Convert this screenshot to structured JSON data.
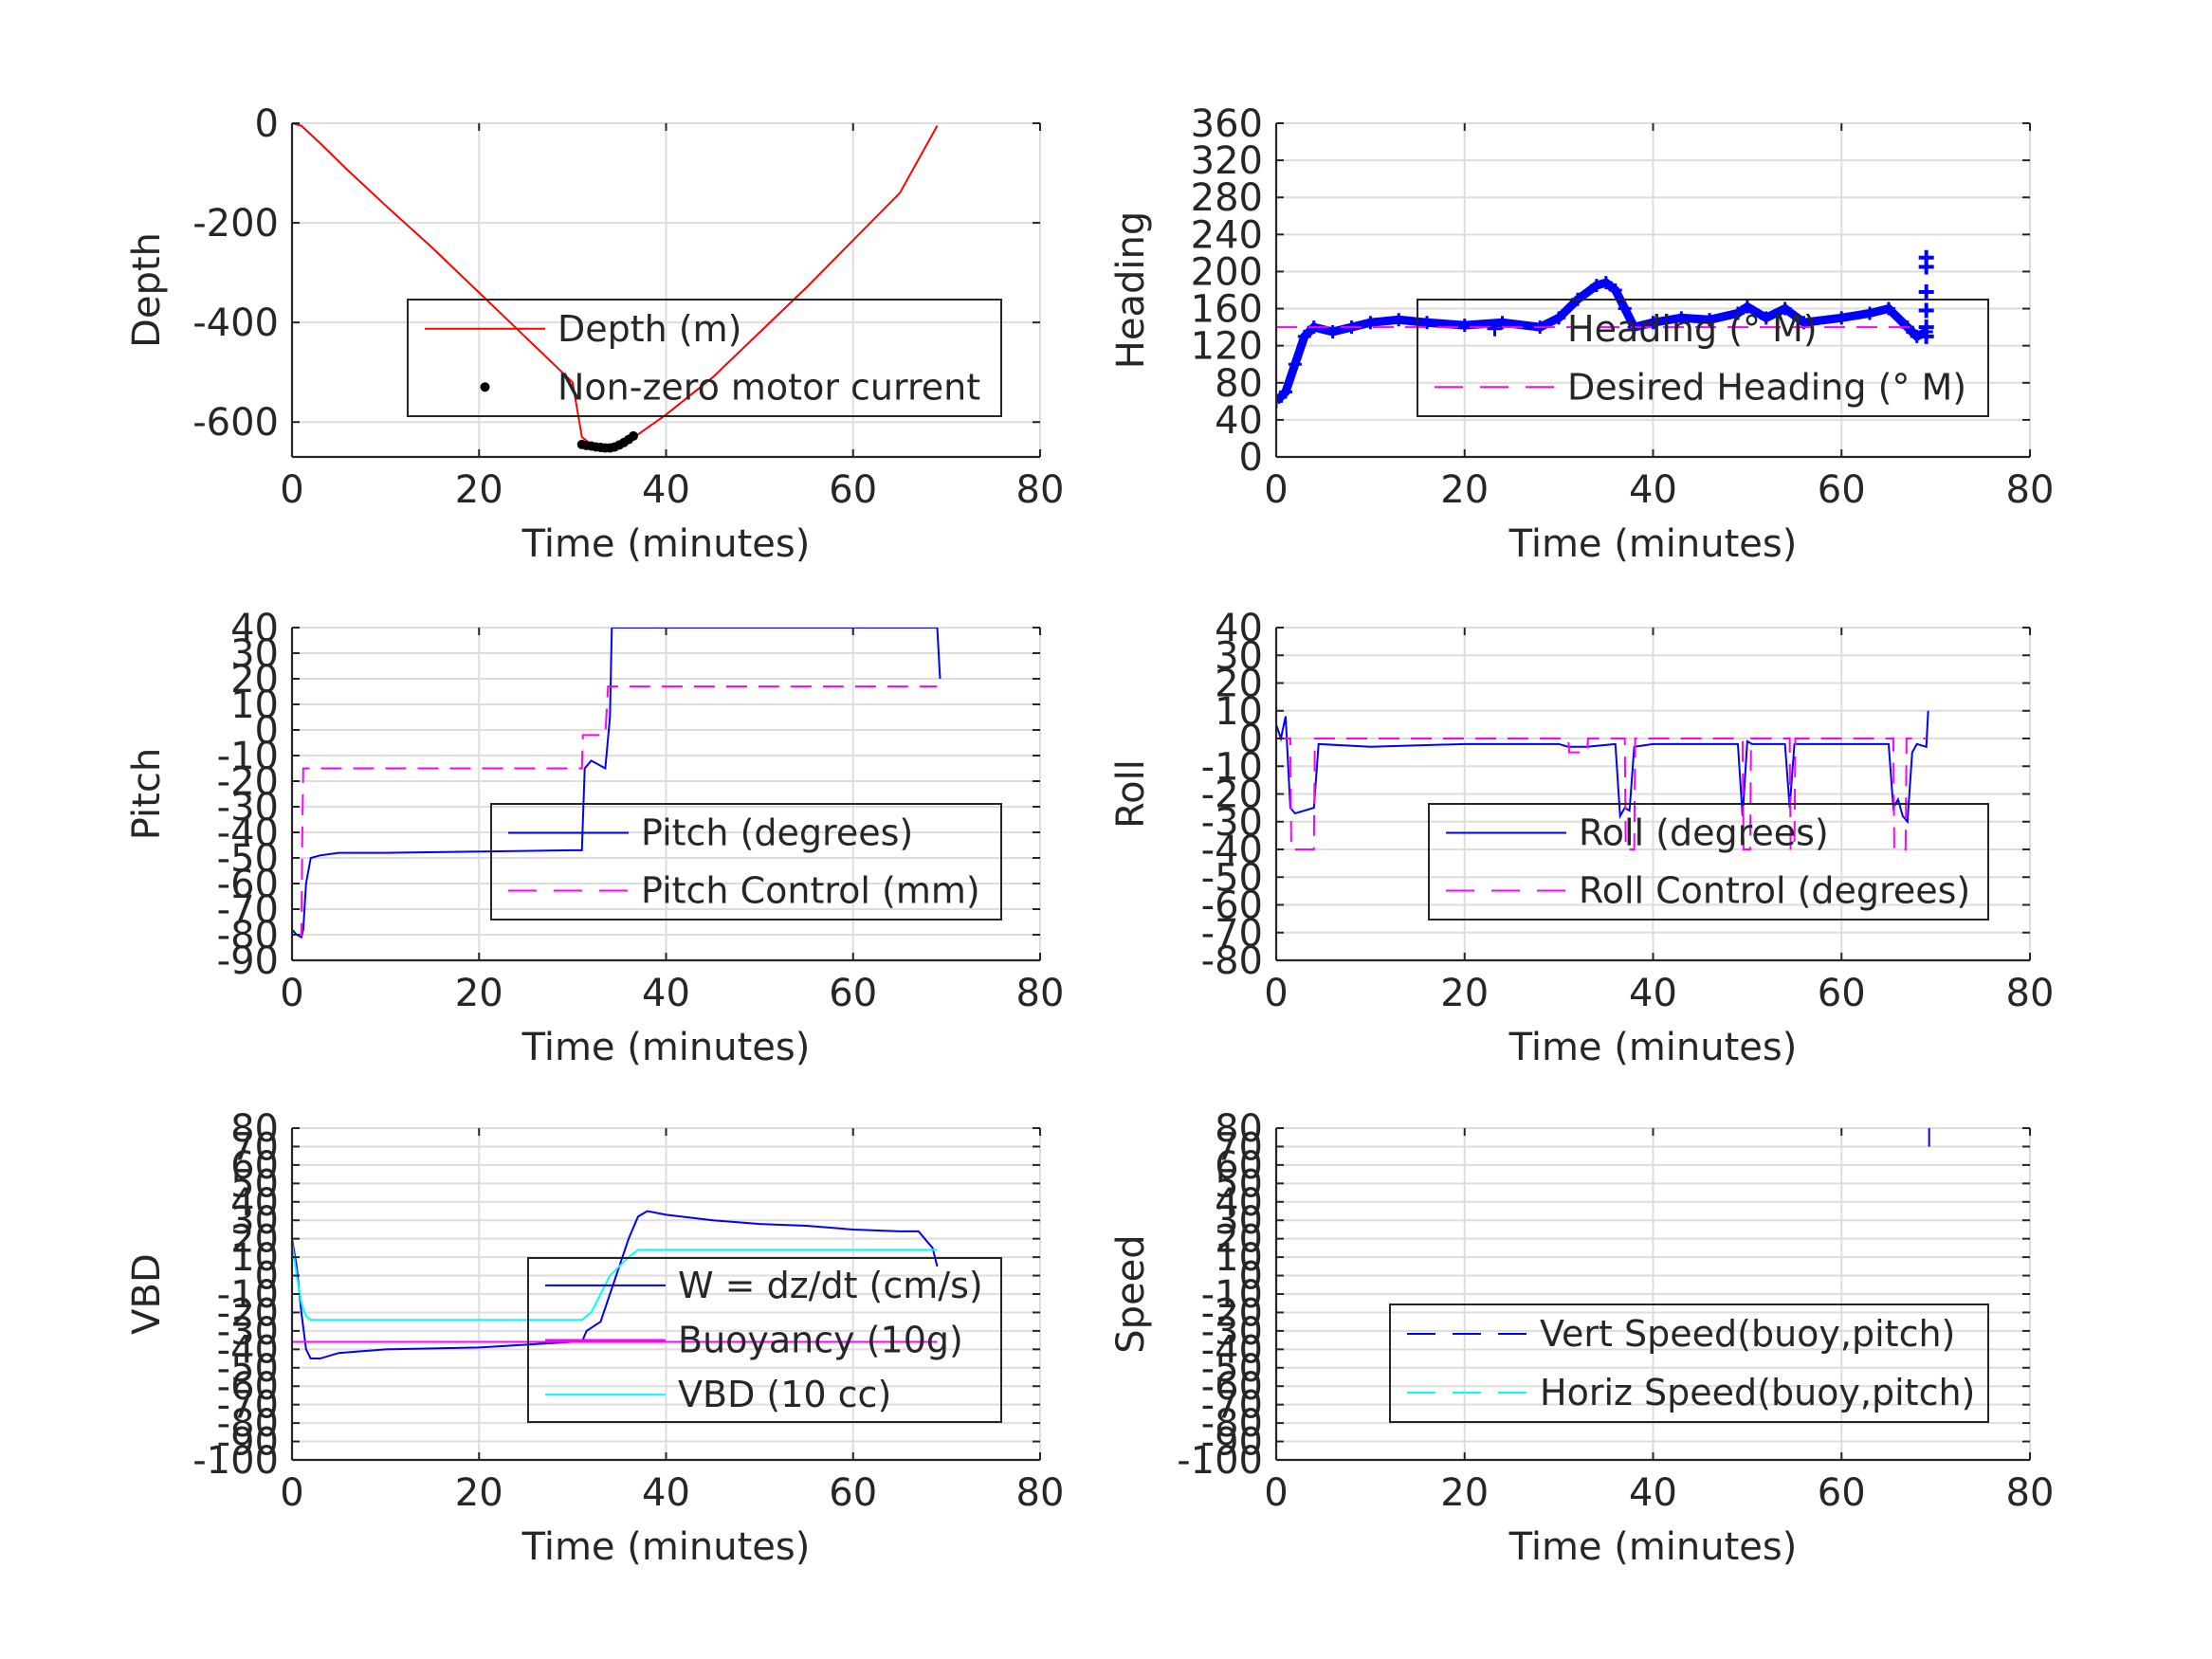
{
  "chart_data": [
    {
      "id": "depth",
      "type": "line",
      "xlabel": "Time (minutes)",
      "ylabel": "Depth",
      "xlim": [
        0,
        80
      ],
      "ylim": [
        -670,
        0
      ],
      "xticks": [
        "0",
        "20",
        "40",
        "60",
        "80"
      ],
      "yticks": [
        0,
        -200,
        -400,
        -600
      ],
      "ytick_labels": [
        "0",
        "-200",
        "-400",
        "-600"
      ],
      "grid": true,
      "legend_position": "center-right",
      "series": [
        {
          "name": "Depth (m)",
          "color": "#ff0000",
          "style": "solid",
          "x": [
            0,
            1,
            3,
            6,
            10,
            15,
            20,
            25,
            30,
            31,
            32,
            33,
            34,
            35,
            36,
            37,
            40,
            45,
            50,
            55,
            60,
            65,
            69
          ],
          "y": [
            0,
            -5,
            -40,
            -95,
            -165,
            -250,
            -340,
            -430,
            -520,
            -630,
            -645,
            -652,
            -655,
            -650,
            -640,
            -625,
            -585,
            -510,
            -420,
            -330,
            -235,
            -140,
            -5
          ]
        },
        {
          "name": "Non-zero motor current",
          "color": "#000000",
          "style": "dots",
          "x": [
            31,
            31.5,
            32,
            32.5,
            33,
            33.5,
            34,
            34.5,
            35,
            35.5,
            36,
            36.5
          ],
          "y": [
            -645,
            -647,
            -648,
            -650,
            -651,
            -652,
            -652,
            -650,
            -646,
            -641,
            -635,
            -628
          ]
        }
      ]
    },
    {
      "id": "heading",
      "type": "line",
      "xlabel": "Time (minutes)",
      "ylabel": "Heading",
      "xlim": [
        0,
        80
      ],
      "ylim": [
        0,
        360
      ],
      "xticks": [
        "0",
        "20",
        "40",
        "60",
        "80"
      ],
      "yticks": [
        0,
        40,
        80,
        120,
        160,
        200,
        240,
        280,
        320,
        360
      ],
      "ytick_labels": [
        "0",
        "40",
        "80",
        "120",
        "160",
        "200",
        "240",
        "280",
        "320",
        "360"
      ],
      "grid": true,
      "legend_position": "center-right",
      "series": [
        {
          "name": "Heading (° M)",
          "color": "#0000ff",
          "style": "markers",
          "x": [
            0,
            1,
            2,
            3,
            4,
            6,
            8,
            10,
            13,
            16,
            20,
            24,
            28,
            30,
            32,
            34,
            35,
            36,
            37,
            38,
            40,
            43,
            46,
            49,
            50,
            52,
            54,
            56,
            60,
            63,
            65,
            67,
            68,
            69
          ],
          "y": [
            60,
            70,
            100,
            130,
            140,
            135,
            140,
            145,
            148,
            145,
            142,
            145,
            140,
            150,
            170,
            185,
            188,
            180,
            160,
            140,
            145,
            150,
            148,
            155,
            162,
            150,
            160,
            145,
            150,
            155,
            160,
            140,
            130,
            135
          ]
        },
        {
          "name": "Desired Heading (° M)",
          "color": "#ff00ff",
          "style": "dashed",
          "x": [
            0,
            69
          ],
          "y": [
            140,
            140
          ]
        }
      ],
      "extra_markers": {
        "color": "#0000ff",
        "x": [
          69,
          69,
          69,
          69,
          69,
          69
        ],
        "y": [
          215,
          205,
          178,
          158,
          140,
          130
        ]
      }
    },
    {
      "id": "pitch",
      "type": "line",
      "xlabel": "Time (minutes)",
      "ylabel": "Pitch",
      "xlim": [
        0,
        80
      ],
      "ylim": [
        -90,
        40
      ],
      "xticks": [
        "0",
        "20",
        "40",
        "60",
        "80"
      ],
      "yticks": [
        40,
        30,
        20,
        10,
        0,
        -10,
        -20,
        -30,
        -40,
        -50,
        -60,
        -70,
        -80,
        -90
      ],
      "ytick_labels": [
        "40",
        "30",
        "20",
        "10",
        "0",
        "-10",
        "-20",
        "-30",
        "-40",
        "-50",
        "-60",
        "-70",
        "-80",
        "-90"
      ],
      "grid": true,
      "legend_position": "center-right",
      "series": [
        {
          "name": "Pitch (degrees)",
          "color": "#0000ff",
          "style": "solid",
          "x": [
            0,
            0.5,
            1,
            1.2,
            1.5,
            2,
            3,
            5,
            10,
            20,
            30,
            31,
            31.3,
            32,
            33,
            33.5,
            34,
            34.2,
            69,
            69.3
          ],
          "y": [
            -78,
            -80,
            -81,
            -78,
            -60,
            -50,
            -49,
            -48,
            -48,
            -47.5,
            -47,
            -47,
            -15,
            -12,
            -14,
            -15,
            5,
            40,
            40,
            20
          ]
        },
        {
          "name": "Pitch Control (mm)",
          "color": "#ff00ff",
          "style": "dashed",
          "x": [
            0,
            1,
            1.1,
            1.2,
            31,
            31.1,
            33.5,
            33.8,
            69
          ],
          "y": [
            -80,
            -80,
            -40,
            -15,
            -15,
            -2,
            -2,
            17,
            17
          ]
        }
      ]
    },
    {
      "id": "roll",
      "type": "line",
      "xlabel": "Time (minutes)",
      "ylabel": "Roll",
      "xlim": [
        0,
        80
      ],
      "ylim": [
        -80,
        40
      ],
      "xticks": [
        "0",
        "20",
        "40",
        "60",
        "80"
      ],
      "yticks": [
        40,
        30,
        20,
        10,
        0,
        -10,
        -20,
        -30,
        -40,
        -50,
        -60,
        -70,
        -80
      ],
      "ytick_labels": [
        "40",
        "30",
        "20",
        "10",
        "0",
        "-10",
        "-20",
        "-30",
        "-40",
        "-50",
        "-60",
        "-70",
        "-80"
      ],
      "grid": true,
      "legend_position": "center-right",
      "series": [
        {
          "name": "Roll (degrees)",
          "color": "#0000ff",
          "style": "solid",
          "x": [
            0,
            0.5,
            1,
            1.5,
            2,
            3,
            4,
            4.5,
            10,
            20,
            30,
            31,
            33,
            36,
            36.5,
            37,
            37.5,
            38,
            40,
            49,
            49.5,
            50,
            50.5,
            54,
            54.5,
            55,
            56,
            65,
            65.5,
            66,
            66.5,
            67,
            67.5,
            68,
            69,
            69.2
          ],
          "y": [
            5,
            0,
            8,
            -25,
            -27,
            -26,
            -25,
            -2,
            -3,
            -2,
            -2,
            -3,
            -3,
            -2,
            -28,
            -25,
            -26,
            -3,
            -2,
            -2,
            -28,
            -1,
            -2,
            -2,
            -25,
            -2,
            -2,
            -2,
            -25,
            -22,
            -28,
            -30,
            -5,
            -2,
            -3,
            10
          ]
        },
        {
          "name": "Roll Control (degrees)",
          "color": "#ff00ff",
          "style": "dashed",
          "x": [
            0,
            1.5,
            1.6,
            4,
            4.1,
            31,
            31.1,
            33,
            33.1,
            37,
            37.1,
            38,
            38.1,
            49.5,
            49.6,
            50.3,
            50.4,
            54.5,
            54.6,
            55,
            55.1,
            65.5,
            65.6,
            66.8,
            66.9,
            69
          ],
          "y": [
            0,
            0,
            -40,
            -40,
            0,
            0,
            -5,
            -5,
            0,
            0,
            -40,
            -40,
            0,
            0,
            -40,
            -40,
            0,
            0,
            -40,
            -40,
            0,
            0,
            -40,
            -40,
            0,
            0
          ]
        }
      ]
    },
    {
      "id": "vbd",
      "type": "line",
      "xlabel": "Time (minutes)",
      "ylabel": "VBD",
      "xlim": [
        0,
        80
      ],
      "ylim": [
        -100,
        80
      ],
      "xticks": [
        "0",
        "20",
        "40",
        "60",
        "80"
      ],
      "yticks": [
        80,
        70,
        60,
        50,
        40,
        30,
        20,
        10,
        0,
        -10,
        -20,
        -30,
        -40,
        -50,
        -60,
        -70,
        -80,
        -90,
        -100
      ],
      "ytick_labels": [
        "80",
        "70",
        "60",
        "50",
        "40",
        "30",
        "20",
        "10",
        "0",
        "-10",
        "-20",
        "-30",
        "-40",
        "-50",
        "-60",
        "-70",
        "-80",
        "-90",
        "-100"
      ],
      "grid": true,
      "legend_position": "center-right",
      "series": [
        {
          "name": "W = dz/dt (cm/s)",
          "color": "#0000ff",
          "style": "solid",
          "x": [
            0,
            0.5,
            1,
            1.5,
            2,
            3,
            5,
            10,
            20,
            30,
            31,
            31.5,
            33,
            34,
            35,
            36,
            37,
            38,
            40,
            45,
            50,
            55,
            60,
            65,
            67,
            68,
            68.5,
            69
          ],
          "y": [
            20,
            5,
            -20,
            -40,
            -45,
            -45,
            -42,
            -40,
            -39,
            -36,
            -36,
            -30,
            -25,
            -10,
            5,
            20,
            32,
            35,
            33,
            30,
            28,
            27,
            25,
            24,
            24,
            18,
            15,
            5
          ]
        },
        {
          "name": "Buoyancy (10g)",
          "color": "#ff00ff",
          "style": "solid",
          "x": [
            0,
            69
          ],
          "y": [
            -36,
            -36
          ]
        },
        {
          "name": "VBD (10 cc)",
          "color": "#00ffff",
          "style": "solid",
          "x": [
            0,
            0.5,
            1,
            1.5,
            2,
            30,
            31,
            32,
            33,
            34,
            35,
            36,
            37,
            69
          ],
          "y": [
            18,
            0,
            -15,
            -22,
            -24,
            -24,
            -24,
            -20,
            -10,
            0,
            5,
            10,
            14,
            14
          ]
        }
      ]
    },
    {
      "id": "speed",
      "type": "line",
      "xlabel": "Time (minutes)",
      "ylabel": "Speed",
      "xlim": [
        0,
        80
      ],
      "ylim": [
        -100,
        80
      ],
      "xticks": [
        "0",
        "20",
        "40",
        "60",
        "80"
      ],
      "yticks": [
        80,
        70,
        60,
        50,
        40,
        30,
        20,
        10,
        0,
        -10,
        -20,
        -30,
        -40,
        -50,
        -60,
        -70,
        -80,
        -90,
        -100
      ],
      "ytick_labels": [
        "80",
        "70",
        "60",
        "50",
        "40",
        "30",
        "20",
        "10",
        "0",
        "-10",
        "-20",
        "-30",
        "-40",
        "-50",
        "-60",
        "-70",
        "-80",
        "-90",
        "-100"
      ],
      "grid": true,
      "legend_position": "center-right",
      "series": [
        {
          "name": "Vert Speed(buoy,pitch)",
          "color": "#0000ff",
          "style": "dashed",
          "x": [
            69.3,
            69.3
          ],
          "y": [
            80,
            70
          ]
        },
        {
          "name": "Horiz Speed(buoy,pitch)",
          "color": "#00ffff",
          "style": "dashed",
          "x": [],
          "y": []
        }
      ]
    }
  ]
}
